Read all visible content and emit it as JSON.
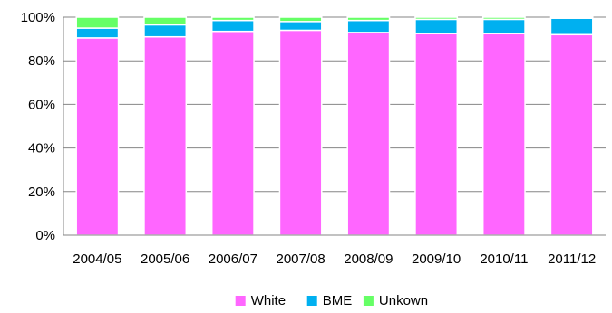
{
  "chart_data": {
    "type": "bar",
    "stacked": true,
    "percent": true,
    "categories": [
      "2004/05",
      "2005/06",
      "2006/07",
      "2007/08",
      "2008/09",
      "2009/10",
      "2010/11",
      "2011/12"
    ],
    "series": [
      {
        "name": "White",
        "color": "#ff66ff",
        "values": [
          90.5,
          91.0,
          93.5,
          94.0,
          93.0,
          92.5,
          92.5,
          92.0
        ]
      },
      {
        "name": "BME",
        "color": "#00b0f0",
        "values": [
          4.5,
          5.5,
          5.0,
          4.0,
          5.5,
          6.5,
          6.5,
          7.5
        ]
      },
      {
        "name": "Unkown",
        "color": "#66ff66",
        "values": [
          5.0,
          3.5,
          1.5,
          2.0,
          1.5,
          1.0,
          1.0,
          0.5
        ]
      }
    ],
    "y_ticks": [
      "0%",
      "20%",
      "40%",
      "60%",
      "80%",
      "100%"
    ],
    "ylim": [
      0,
      100
    ],
    "grid": true,
    "legend": "bottom-center"
  }
}
